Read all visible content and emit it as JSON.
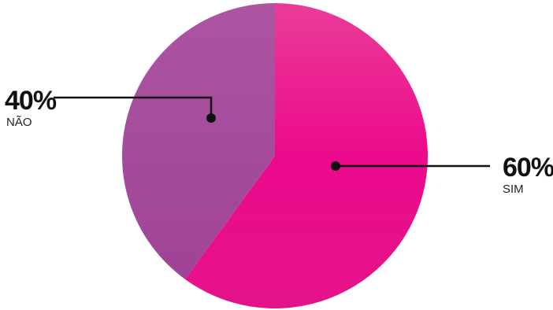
{
  "chart_data": {
    "type": "pie",
    "slices": [
      {
        "label": "SIM",
        "value": 60,
        "value_label": "60%",
        "color": "#e8168c"
      },
      {
        "label": "NÃO",
        "value": 40,
        "value_label": "40%",
        "color": "#a5489d"
      }
    ],
    "start_angle_deg": 0,
    "direction": "clockwise",
    "legend": "none"
  }
}
